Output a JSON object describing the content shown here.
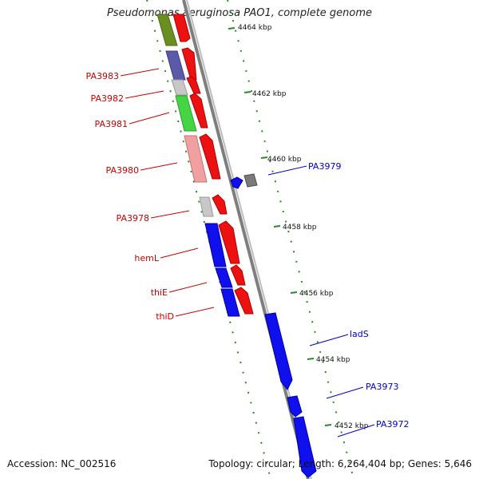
{
  "title": "Pseudomonas aeruginosa PAO1, complete genome",
  "footer": {
    "accession": "Accession: NC_002516",
    "summary": "Topology: circular; Length: 6,264,404 bp; Genes: 5,646"
  },
  "colors": {
    "backbone": "#8c8c8c",
    "tick": "#2a8a2a",
    "left_label": "#cc0000",
    "right_label": "#0000cc"
  },
  "kbp_labels": [
    "4464 kbp",
    "4462 kbp",
    "4460 kbp",
    "4458 kbp",
    "4456 kbp",
    "4454 kbp",
    "4452 kbp"
  ],
  "left_genes": [
    "PA3983",
    "PA3982",
    "PA3981",
    "PA3980",
    "PA3978",
    "hemL",
    "thiE",
    "thiD"
  ],
  "right_genes": [
    "PA3979",
    "ladS",
    "PA3973",
    "PA3972"
  ]
}
